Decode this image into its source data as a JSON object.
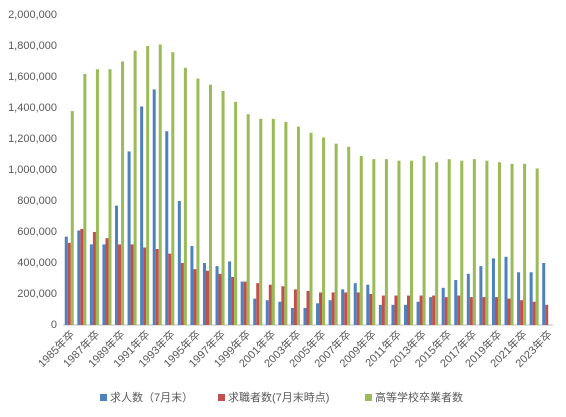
{
  "chart_data": {
    "type": "bar",
    "categories": [
      "1985年卒",
      null,
      "1987年卒",
      null,
      "1989年卒",
      null,
      "1991年卒",
      null,
      "1993年卒",
      null,
      "1995年卒",
      null,
      "1997年卒",
      null,
      "1999年卒",
      null,
      "2001年卒",
      null,
      "2003年卒",
      null,
      "2005年卒",
      null,
      "2007年卒",
      null,
      "2009年卒",
      null,
      "2011年卒",
      null,
      "2013年卒",
      null,
      "2015年卒",
      null,
      "2017年卒",
      null,
      "2019年卒",
      null,
      "2021年卒",
      null,
      "2023年卒"
    ],
    "series": [
      {
        "name": "求人数（7月末）",
        "color": "#4f81bd",
        "values": [
          570000,
          610000,
          520000,
          520000,
          770000,
          1120000,
          1410000,
          1520000,
          1250000,
          800000,
          510000,
          400000,
          380000,
          410000,
          280000,
          170000,
          160000,
          150000,
          110000,
          110000,
          140000,
          160000,
          230000,
          270000,
          260000,
          130000,
          130000,
          130000,
          150000,
          180000,
          240000,
          290000,
          330000,
          380000,
          430000,
          440000,
          340000,
          340000,
          400000
        ]
      },
      {
        "name": "求職者数(7月末時点)",
        "color": "#c0504d",
        "values": [
          530000,
          620000,
          600000,
          560000,
          520000,
          520000,
          500000,
          490000,
          460000,
          400000,
          360000,
          350000,
          330000,
          310000,
          280000,
          270000,
          260000,
          250000,
          230000,
          220000,
          210000,
          210000,
          210000,
          210000,
          200000,
          190000,
          190000,
          190000,
          190000,
          190000,
          180000,
          190000,
          180000,
          180000,
          180000,
          170000,
          160000,
          150000,
          130000
        ]
      },
      {
        "name": "高等学校卒業者数",
        "color": "#9bbb59",
        "values": [
          1380000,
          1620000,
          1650000,
          1650000,
          1700000,
          1770000,
          1800000,
          1810000,
          1760000,
          1660000,
          1590000,
          1550000,
          1510000,
          1440000,
          1360000,
          1330000,
          1330000,
          1310000,
          1280000,
          1240000,
          1210000,
          1170000,
          1150000,
          1090000,
          1070000,
          1070000,
          1060000,
          1060000,
          1090000,
          1050000,
          1070000,
          1060000,
          1070000,
          1060000,
          1050000,
          1040000,
          1040000,
          1010000,
          null
        ]
      }
    ],
    "ylim": [
      0,
      2000000
    ],
    "yticks": [
      0,
      {
        "value": 200000,
        "label": "200,000"
      },
      {
        "value": 400000,
        "label": "400,000"
      },
      {
        "value": 600000,
        "label": "600,000"
      },
      {
        "value": 800000,
        "label": "800,000"
      },
      {
        "value": 1000000,
        "label": "1,000,000"
      },
      {
        "value": 1200000,
        "label": "1,200,000"
      },
      {
        "value": 1400000,
        "label": "1,400,000"
      },
      {
        "value": 1600000,
        "label": "1,600,000"
      },
      {
        "value": 1800000,
        "label": "1,800,000"
      },
      {
        "value": 2000000,
        "label": "2,000,000"
      }
    ],
    "grid": false,
    "legend": "bottom"
  }
}
